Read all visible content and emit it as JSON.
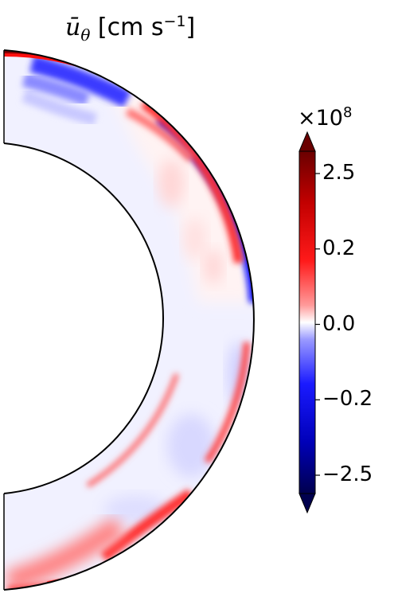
{
  "chart_data": {
    "type": "heatmap",
    "title": {
      "symbol": "ū",
      "subscript": "θ",
      "unit_text": " [cm s",
      "unit_exponent": "−1",
      "unit_close": "]"
    },
    "geometry_kind": "meridional half-annulus (polar contour plot)",
    "inner_radius_fraction": 0.65,
    "colormap": "seismic",
    "colorbar": {
      "multiplier_base": "×10",
      "multiplier_exponent": "8",
      "tick_labels": [
        "2.5",
        "0.2",
        "0.0",
        "−0.2",
        "−2.5"
      ],
      "tick_values": [
        2.5,
        0.2,
        0.0,
        -0.2,
        -2.5
      ],
      "extend": "both"
    },
    "features": [
      {
        "region": "outer shell, northern hemisphere",
        "sign": "positive",
        "intensity": "strong"
      },
      {
        "region": "near outer boundary above equator",
        "sign": "negative",
        "intensity": "strong"
      },
      {
        "region": "near outer boundary below equator",
        "sign": "positive",
        "intensity": "strong"
      },
      {
        "region": "deep interior",
        "sign": "near zero",
        "intensity": "weak"
      },
      {
        "region": "southern high latitudes",
        "sign": "positive",
        "intensity": "moderate"
      }
    ]
  }
}
